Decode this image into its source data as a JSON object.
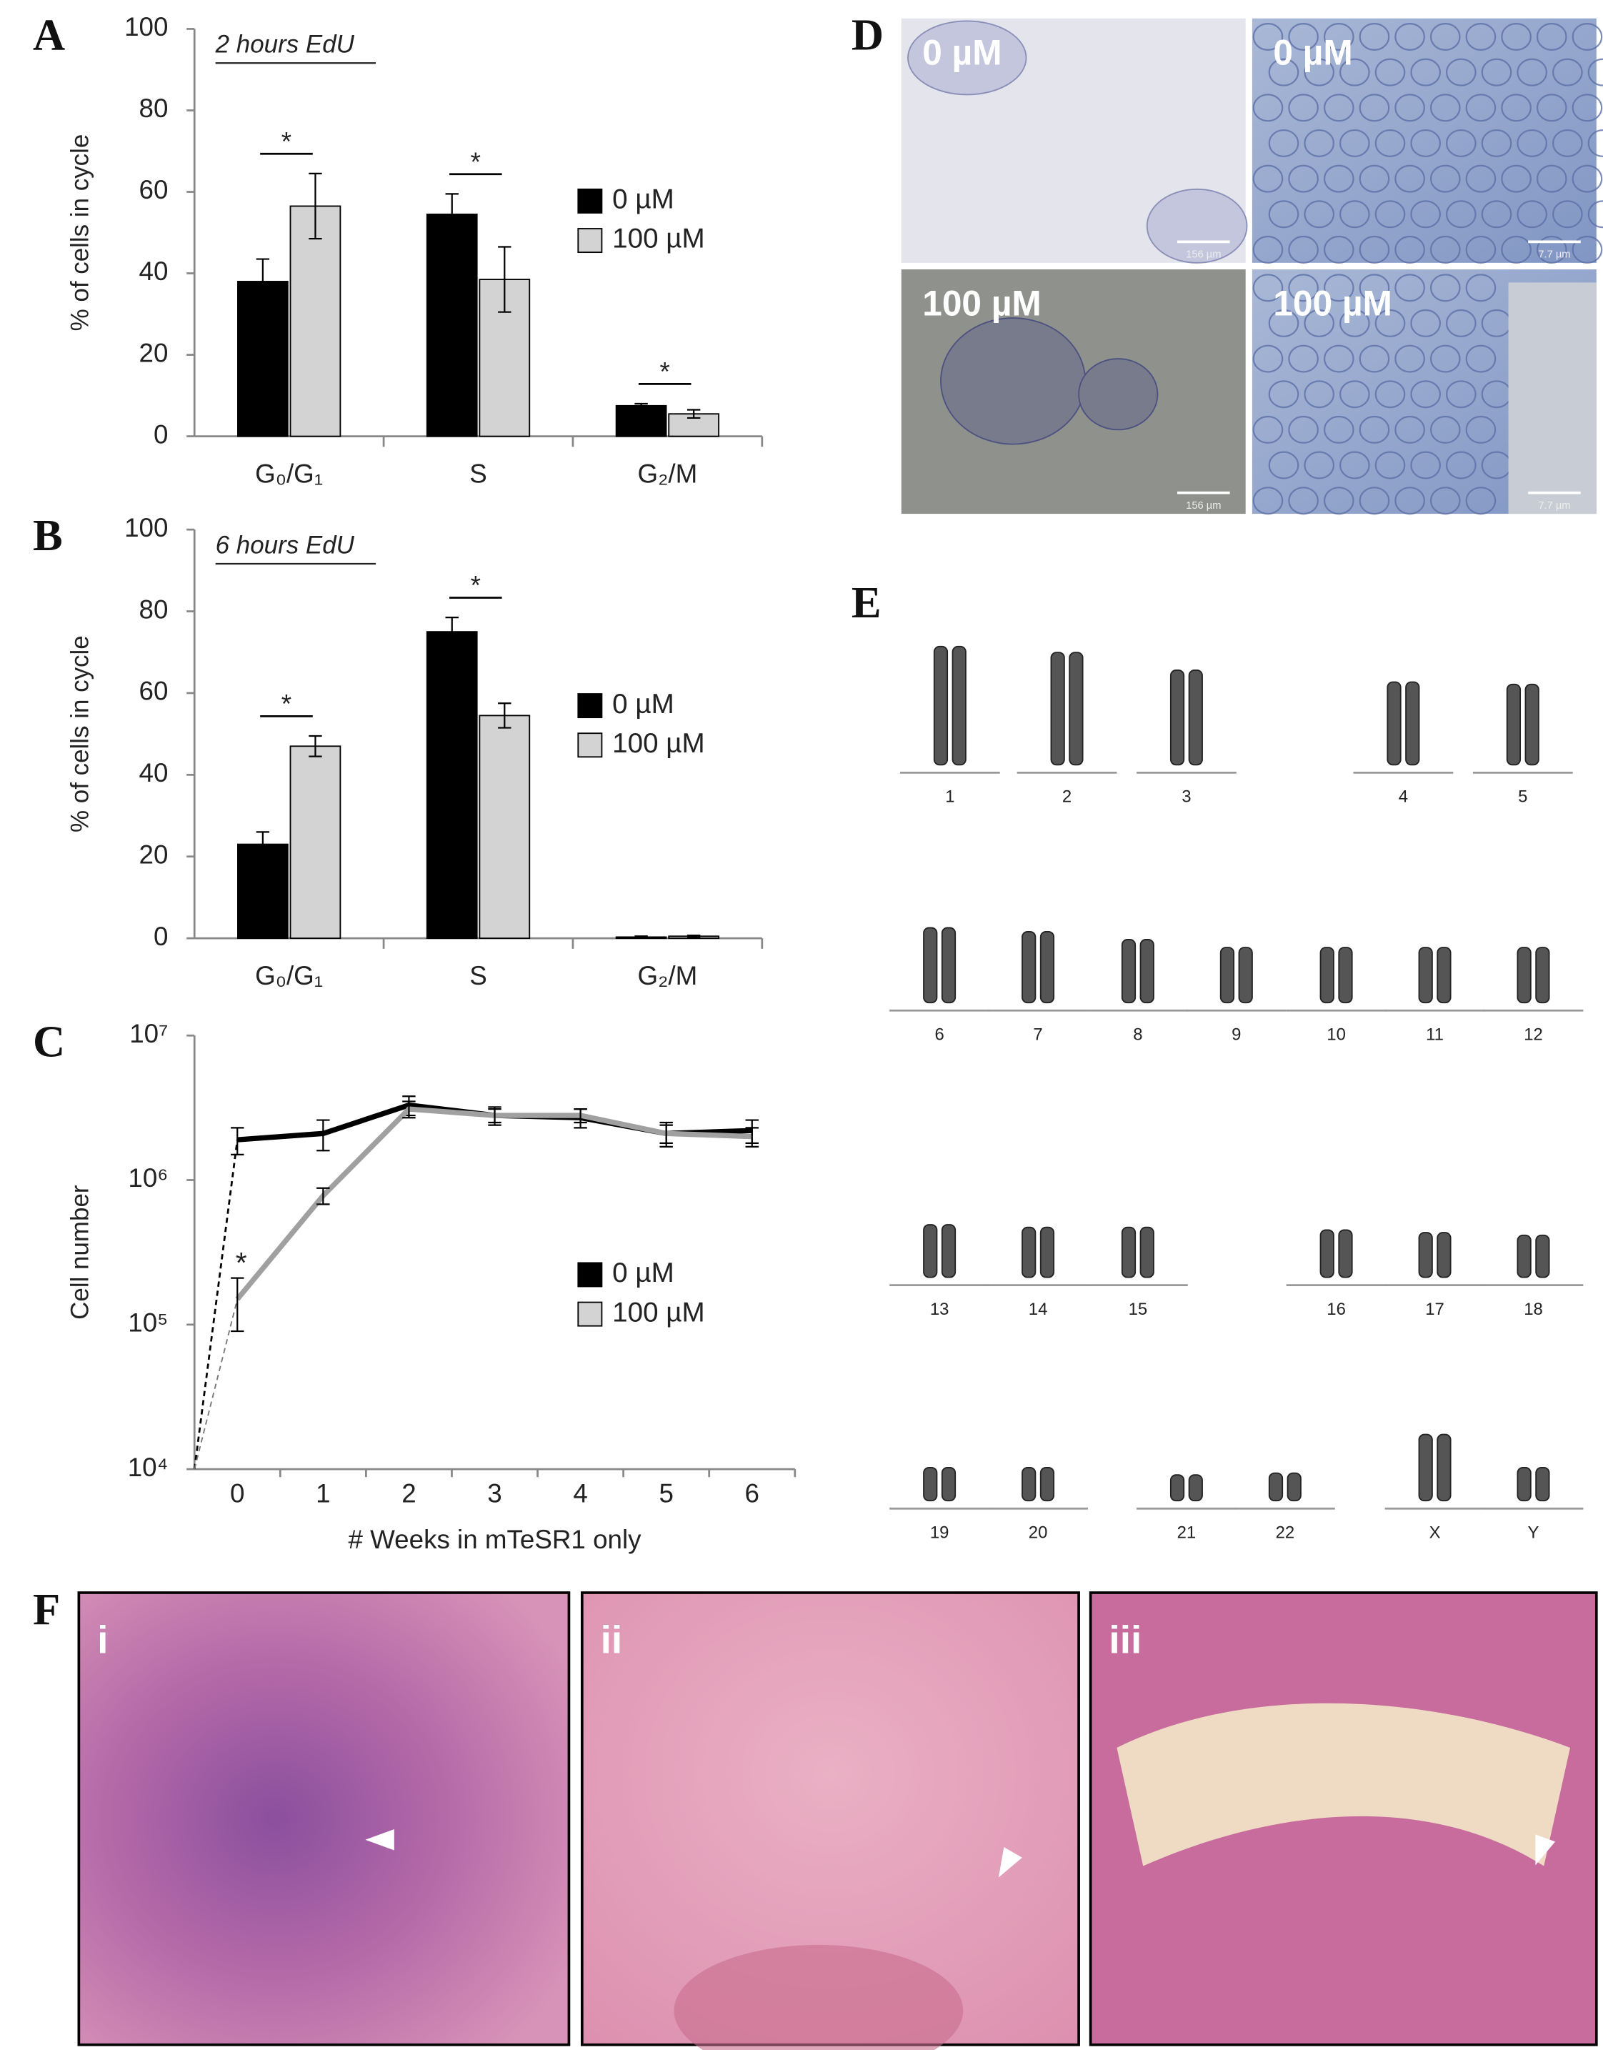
{
  "chart_data": [
    {
      "type": "bar",
      "label": "A",
      "annotation": "2 hours EdU",
      "y_label": "% of cells in cycle",
      "categories": [
        "G₀/G₁",
        "S",
        "G₂/M"
      ],
      "series": [
        {
          "name": "0 µM",
          "color": "#000000",
          "values": [
            38,
            54.5,
            7.5
          ],
          "errors": [
            5.5,
            5,
            0.5
          ]
        },
        {
          "name": "100 µM",
          "color": "#d3d3d3",
          "values": [
            56.5,
            38.5,
            5.5
          ],
          "errors": [
            8,
            8,
            1
          ]
        }
      ],
      "significance": [
        "*",
        "*",
        "*"
      ],
      "ylim": [
        0,
        100
      ],
      "yticks": [
        0,
        20,
        40,
        60,
        80,
        100
      ],
      "legend": "right"
    },
    {
      "type": "bar",
      "label": "B",
      "annotation": "6 hours EdU",
      "y_label": "% of cells in cycle",
      "categories": [
        "G₀/G₁",
        "S",
        "G₂/M"
      ],
      "series": [
        {
          "name": "0 µM",
          "color": "#000000",
          "values": [
            23,
            75,
            0.3
          ],
          "errors": [
            3,
            3.5,
            0.2
          ]
        },
        {
          "name": "100 µM",
          "color": "#d3d3d3",
          "values": [
            47,
            54.5,
            0.5
          ],
          "errors": [
            2.5,
            3,
            0.2
          ]
        }
      ],
      "significance": [
        "*",
        "*",
        null
      ],
      "ylim": [
        0,
        100
      ],
      "yticks": [
        0,
        20,
        40,
        60,
        80,
        100
      ],
      "legend": "right"
    },
    {
      "type": "line",
      "label": "C",
      "x_label": "# Weeks in mTeSR1 only",
      "y_label": "Cell number",
      "x": [
        0,
        1,
        2,
        3,
        4,
        5,
        6
      ],
      "xlim": [
        -0.5,
        6.5
      ],
      "xticks": [
        0,
        1,
        2,
        3,
        4,
        5,
        6
      ],
      "yscale": "log",
      "ylim": [
        10000,
        10000000
      ],
      "yticks": [
        {
          "value": 10000,
          "label": "10⁴"
        },
        {
          "value": 100000,
          "label": "10⁵"
        },
        {
          "value": 1000000,
          "label": "10⁶"
        },
        {
          "value": 10000000,
          "label": "10⁷"
        }
      ],
      "series": [
        {
          "name": "0 µM",
          "color": "#000000",
          "values": [
            1900000,
            2100000,
            3300000,
            2800000,
            2700000,
            2100000,
            2200000
          ],
          "errors": [
            400000,
            500000,
            500000,
            400000,
            400000,
            400000,
            400000
          ]
        },
        {
          "name": "100 µM",
          "color": "#a0a0a0",
          "values": [
            150000,
            780000,
            3100000,
            2800000,
            2800000,
            2100000,
            2000000
          ],
          "errors": [
            60000,
            100000,
            400000,
            300000,
            300000,
            300000,
            300000
          ],
          "significance": [
            "*",
            null,
            null,
            null,
            null,
            null,
            null
          ]
        }
      ],
      "legend": "right"
    }
  ],
  "panel_d": {
    "label": "D",
    "images": [
      {
        "text": "0 µM",
        "scale_bar": "156 µm"
      },
      {
        "text": "0 µM",
        "scale_bar": "7.7 µm"
      },
      {
        "text": "100 µM",
        "scale_bar": "156 µm"
      },
      {
        "text": "100 µM",
        "scale_bar": "7.7 µm"
      }
    ]
  },
  "panel_e": {
    "label": "E",
    "chromosomes": [
      "1",
      "2",
      "3",
      "4",
      "5",
      "6",
      "7",
      "8",
      "9",
      "10",
      "11",
      "12",
      "13",
      "14",
      "15",
      "16",
      "17",
      "18",
      "19",
      "20",
      "21",
      "22",
      "X",
      "Y"
    ]
  },
  "panel_f": {
    "label": "F",
    "images": [
      "i",
      "ii",
      "iii"
    ]
  }
}
